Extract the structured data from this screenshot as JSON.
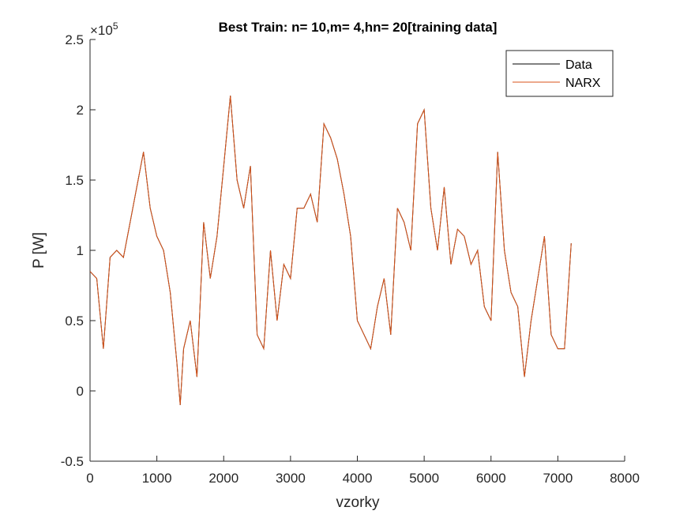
{
  "chart_data": {
    "type": "line",
    "title": "Best Train: n= 10,m= 4,hn= 20[training data]",
    "x_label": "vzorky",
    "y_label": "P [W]",
    "y_scale_label": {
      "base": "×10",
      "exponent": "5"
    },
    "x": [
      0,
      100,
      200,
      300,
      400,
      500,
      600,
      700,
      800,
      900,
      1000,
      1100,
      1200,
      1300,
      1350,
      1400,
      1500,
      1600,
      1700,
      1800,
      1900,
      2000,
      2100,
      2200,
      2300,
      2400,
      2500,
      2600,
      2700,
      2800,
      2900,
      3000,
      3100,
      3200,
      3300,
      3400,
      3500,
      3600,
      3700,
      3800,
      3900,
      4000,
      4100,
      4200,
      4300,
      4400,
      4500,
      4600,
      4700,
      4800,
      4900,
      5000,
      5100,
      5200,
      5300,
      5400,
      5500,
      5600,
      5700,
      5800,
      5900,
      6000,
      6100,
      6200,
      6300,
      6400,
      6500,
      6600,
      6700,
      6800,
      6900,
      7000,
      7100,
      7200
    ],
    "series": [
      {
        "name": "Data",
        "color": "#000000",
        "values": [
          0.85,
          0.8,
          0.3,
          0.95,
          1.0,
          0.95,
          1.2,
          1.45,
          1.7,
          1.3,
          1.1,
          1.0,
          0.7,
          0.2,
          -0.1,
          0.3,
          0.5,
          0.1,
          1.2,
          0.8,
          1.1,
          1.6,
          2.1,
          1.5,
          1.3,
          1.6,
          0.4,
          0.3,
          1.0,
          0.5,
          0.9,
          0.8,
          1.3,
          1.3,
          1.4,
          1.2,
          1.9,
          1.8,
          1.65,
          1.4,
          1.1,
          0.5,
          0.4,
          0.3,
          0.6,
          0.8,
          0.4,
          1.3,
          1.2,
          1.0,
          1.9,
          2.0,
          1.3,
          1.0,
          1.45,
          0.9,
          1.15,
          1.1,
          0.9,
          1.0,
          0.6,
          0.5,
          1.7,
          1.0,
          0.7,
          0.6,
          0.1,
          0.5,
          0.8,
          1.1,
          0.4,
          0.3,
          0.3,
          1.05
        ]
      },
      {
        "name": "NARX",
        "color": "#d95319",
        "values": [
          0.85,
          0.8,
          0.3,
          0.95,
          1.0,
          0.95,
          1.2,
          1.45,
          1.7,
          1.3,
          1.1,
          1.0,
          0.7,
          0.2,
          -0.1,
          0.3,
          0.5,
          0.1,
          1.2,
          0.8,
          1.1,
          1.6,
          2.1,
          1.5,
          1.3,
          1.6,
          0.4,
          0.3,
          1.0,
          0.5,
          0.9,
          0.8,
          1.3,
          1.3,
          1.4,
          1.2,
          1.9,
          1.8,
          1.65,
          1.4,
          1.1,
          0.5,
          0.4,
          0.3,
          0.6,
          0.8,
          0.4,
          1.3,
          1.2,
          1.0,
          1.9,
          2.0,
          1.3,
          1.0,
          1.45,
          0.9,
          1.15,
          1.1,
          0.9,
          1.0,
          0.6,
          0.5,
          1.7,
          1.0,
          0.7,
          0.6,
          0.1,
          0.5,
          0.8,
          1.1,
          0.4,
          0.3,
          0.3,
          1.05
        ]
      }
    ],
    "xlim": [
      0,
      8000
    ],
    "xticks": [
      0,
      1000,
      2000,
      3000,
      4000,
      5000,
      6000,
      7000,
      8000
    ],
    "ylim": [
      -0.5,
      2.5
    ],
    "yticks": [
      -0.5,
      0,
      0.5,
      1,
      1.5,
      2,
      2.5
    ],
    "legend_position": "upper-right"
  }
}
